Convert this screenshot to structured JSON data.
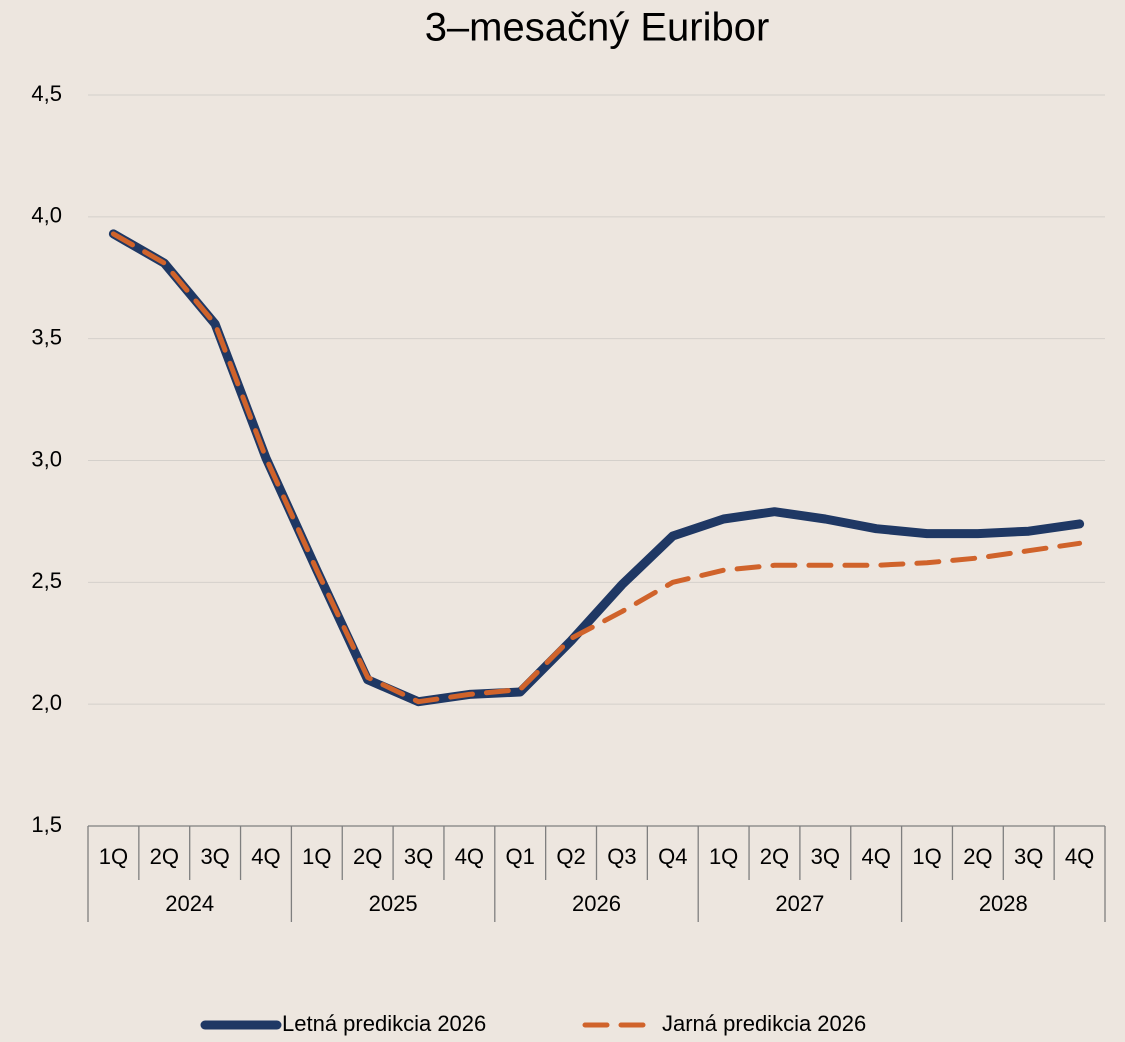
{
  "chart_data": {
    "type": "line",
    "title": "3–mesačný Euribor",
    "categories": [
      "1Q",
      "2Q",
      "3Q",
      "4Q",
      "1Q",
      "2Q",
      "3Q",
      "4Q",
      "Q1",
      "Q2",
      "Q3",
      "Q4",
      "1Q",
      "2Q",
      "3Q",
      "4Q",
      "1Q",
      "2Q",
      "3Q",
      "4Q"
    ],
    "groups": [
      "2024",
      "2025",
      "2026",
      "2027",
      "2028"
    ],
    "series": [
      {
        "name": "Letná predikcia 2026",
        "color": "#1f3864",
        "style": "solid",
        "values": [
          3.93,
          3.81,
          3.56,
          3.01,
          2.55,
          2.1,
          2.01,
          2.04,
          2.05,
          2.26,
          2.49,
          2.69,
          2.76,
          2.79,
          2.76,
          2.72,
          2.7,
          2.7,
          2.71,
          2.74
        ]
      },
      {
        "name": "Jarná predikcia 2026",
        "color": "#d0632b",
        "style": "dashed",
        "values": [
          3.93,
          3.81,
          3.56,
          3.01,
          2.55,
          2.11,
          2.01,
          2.04,
          2.06,
          2.27,
          2.38,
          2.5,
          2.55,
          2.57,
          2.57,
          2.57,
          2.58,
          2.6,
          2.63,
          2.66
        ]
      }
    ],
    "ylim": [
      1.5,
      4.5
    ],
    "yticks": [
      {
        "value": 1.5,
        "label": "1,5"
      },
      {
        "value": 2,
        "label": "2,0"
      },
      {
        "value": 2.5,
        "label": "2,5"
      },
      {
        "value": 3,
        "label": "3,0"
      },
      {
        "value": 3.5,
        "label": "3,5"
      },
      {
        "value": 4,
        "label": "4,0"
      },
      {
        "value": 4.5,
        "label": "4,5"
      }
    ],
    "grid": true,
    "legend": "bottom"
  }
}
